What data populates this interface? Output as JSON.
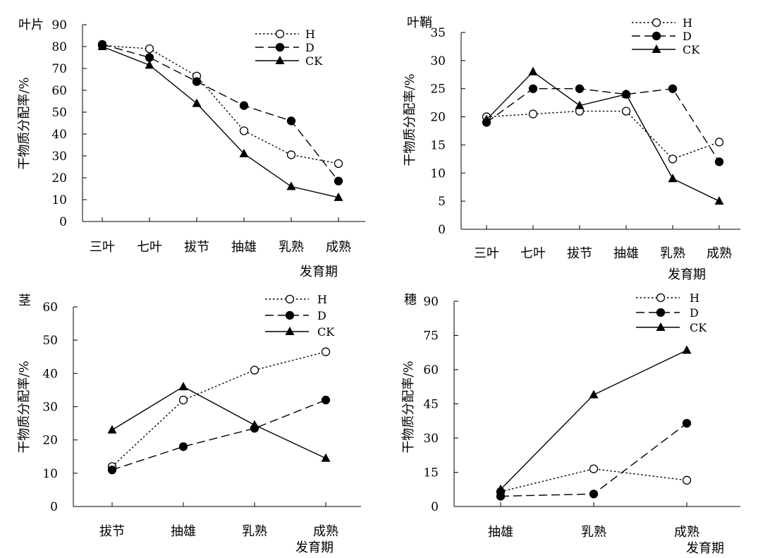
{
  "chart_data": [
    {
      "type": "line",
      "panel_label": "叶片",
      "ylabel": "干物质分配率/%",
      "xlabel": "发育期",
      "categories": [
        "三叶",
        "七叶",
        "拔节",
        "抽雄",
        "乳熟",
        "成熟"
      ],
      "yticks": [
        0,
        10,
        20,
        30,
        40,
        50,
        60,
        70,
        80,
        90
      ],
      "ylim": [
        0,
        90
      ],
      "legend": "top-right",
      "grid": false,
      "series": [
        {
          "name": "H",
          "style": "dotted",
          "marker": "open-circle",
          "values": [
            80.5,
            79.0,
            66.5,
            41.5,
            30.5,
            26.5
          ]
        },
        {
          "name": "D",
          "style": "dashed",
          "marker": "filled-circle",
          "values": [
            81.0,
            75.0,
            64.0,
            53.0,
            46.0,
            18.5
          ]
        },
        {
          "name": "CK",
          "style": "solid",
          "marker": "filled-triangle",
          "values": [
            80.0,
            71.5,
            54.0,
            31.0,
            16.0,
            11.0
          ]
        }
      ]
    },
    {
      "type": "line",
      "panel_label": "叶鞘",
      "ylabel": "干物质分配率/%",
      "xlabel": "发育期",
      "categories": [
        "三叶",
        "七叶",
        "拔节",
        "抽雄",
        "乳熟",
        "成熟"
      ],
      "yticks": [
        0,
        5,
        10,
        15,
        20,
        25,
        30,
        35
      ],
      "ylim": [
        0,
        35
      ],
      "legend": "top-right",
      "grid": false,
      "series": [
        {
          "name": "H",
          "style": "dotted",
          "marker": "open-circle",
          "values": [
            20.0,
            20.5,
            21.0,
            21.0,
            12.5,
            15.5
          ]
        },
        {
          "name": "D",
          "style": "dashed",
          "marker": "filled-circle",
          "values": [
            19.0,
            25.0,
            25.0,
            24.0,
            25.0,
            12.0
          ]
        },
        {
          "name": "CK",
          "style": "solid",
          "marker": "filled-triangle",
          "values": [
            19.5,
            28.0,
            22.0,
            24.0,
            9.0,
            5.0
          ]
        }
      ]
    },
    {
      "type": "line",
      "panel_label": "茎",
      "ylabel": "干物质分配率/%",
      "xlabel": "发育期",
      "categories": [
        "拔节",
        "抽雄",
        "乳熟",
        "成熟"
      ],
      "yticks": [
        0,
        10,
        20,
        30,
        40,
        50,
        60
      ],
      "ylim": [
        0,
        60
      ],
      "legend": "top-right",
      "grid": false,
      "series": [
        {
          "name": "H",
          "style": "dotted",
          "marker": "open-circle",
          "values": [
            12.0,
            32.0,
            41.0,
            46.5
          ]
        },
        {
          "name": "D",
          "style": "dashed",
          "marker": "filled-circle",
          "values": [
            11.0,
            18.0,
            23.5,
            32.0
          ]
        },
        {
          "name": "CK",
          "style": "solid",
          "marker": "filled-triangle",
          "values": [
            23.0,
            36.0,
            24.5,
            14.5
          ]
        }
      ]
    },
    {
      "type": "line",
      "panel_label": "穗",
      "ylabel": "干物质分配率/%",
      "xlabel": "发育期",
      "categories": [
        "抽雄",
        "乳熟",
        "成熟"
      ],
      "yticks": [
        0,
        15,
        30,
        45,
        60,
        75,
        90
      ],
      "ylim": [
        0,
        90
      ],
      "legend": "top-right",
      "grid": false,
      "series": [
        {
          "name": "H",
          "style": "dotted",
          "marker": "open-circle",
          "values": [
            6.5,
            16.5,
            11.5
          ]
        },
        {
          "name": "D",
          "style": "dashed",
          "marker": "filled-circle",
          "values": [
            4.5,
            5.5,
            36.5
          ]
        },
        {
          "name": "CK",
          "style": "solid",
          "marker": "filled-triangle",
          "values": [
            7.5,
            49.0,
            68.5
          ]
        }
      ]
    }
  ]
}
